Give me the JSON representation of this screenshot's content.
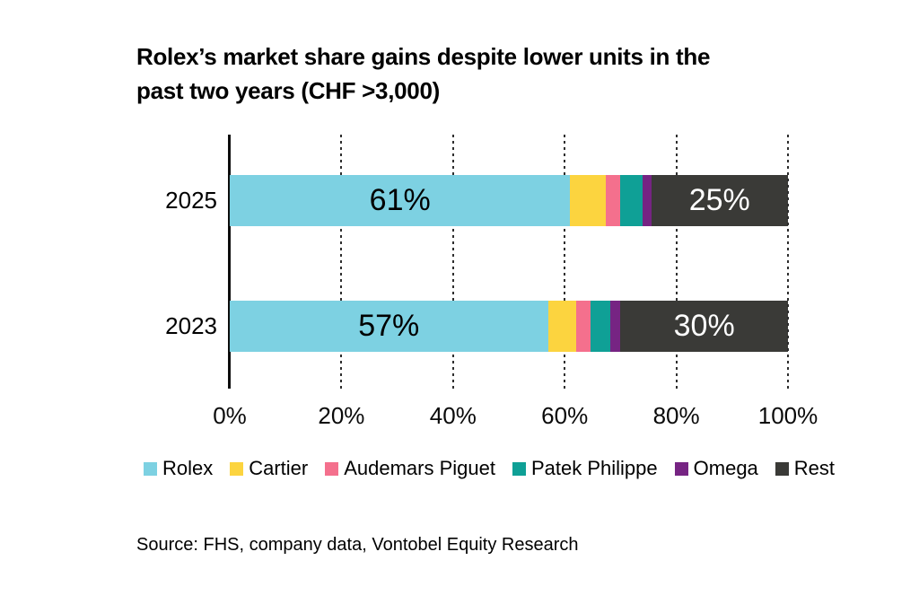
{
  "title": {
    "line1": "Rolex’s market share gains despite lower units in the",
    "line2": "past two years (CHF >3,000)"
  },
  "chart_data": {
    "type": "bar",
    "variant": "horizontal-stacked",
    "title": "Rolex’s market share gains despite lower units in the past two years (CHF >3,000)",
    "categories": [
      "2025",
      "2023"
    ],
    "series": [
      {
        "name": "Rolex",
        "color": "#7DD1E2",
        "values": [
          61.0,
          57.0
        ],
        "labels": [
          "61%",
          "57%"
        ],
        "label_color": "#000000"
      },
      {
        "name": "Cartier",
        "color": "#FCD43F",
        "values": [
          6.3,
          5.0
        ],
        "labels": [
          "",
          ""
        ],
        "label_color": "#000000"
      },
      {
        "name": "Audemars Piguet",
        "color": "#F4708D",
        "values": [
          2.6,
          2.6
        ],
        "labels": [
          "",
          ""
        ],
        "label_color": "#000000"
      },
      {
        "name": "Patek Philippe",
        "color": "#0FA096",
        "values": [
          4.0,
          3.5
        ],
        "labels": [
          "",
          ""
        ],
        "label_color": "#000000"
      },
      {
        "name": "Omega",
        "color": "#762483",
        "values": [
          1.6,
          1.9
        ],
        "labels": [
          "",
          ""
        ],
        "label_color": "#000000"
      },
      {
        "name": "Rest",
        "color": "#3A3A37",
        "values": [
          24.5,
          30.0
        ],
        "labels": [
          "25%",
          "30%"
        ],
        "label_color": "#ffffff"
      }
    ],
    "x_ticks": [
      {
        "value": 0,
        "label": "0%"
      },
      {
        "value": 20,
        "label": "20%"
      },
      {
        "value": 40,
        "label": "40%"
      },
      {
        "value": 60,
        "label": "60%"
      },
      {
        "value": 80,
        "label": "80%"
      },
      {
        "value": 100,
        "label": "100%"
      }
    ],
    "xlim": [
      0,
      100
    ],
    "grid": "dotted-vertical",
    "legend_position": "bottom",
    "axis_color": "#0d0d0d"
  },
  "source": {
    "text": "Source: FHS, company data, Vontobel Equity Research"
  }
}
